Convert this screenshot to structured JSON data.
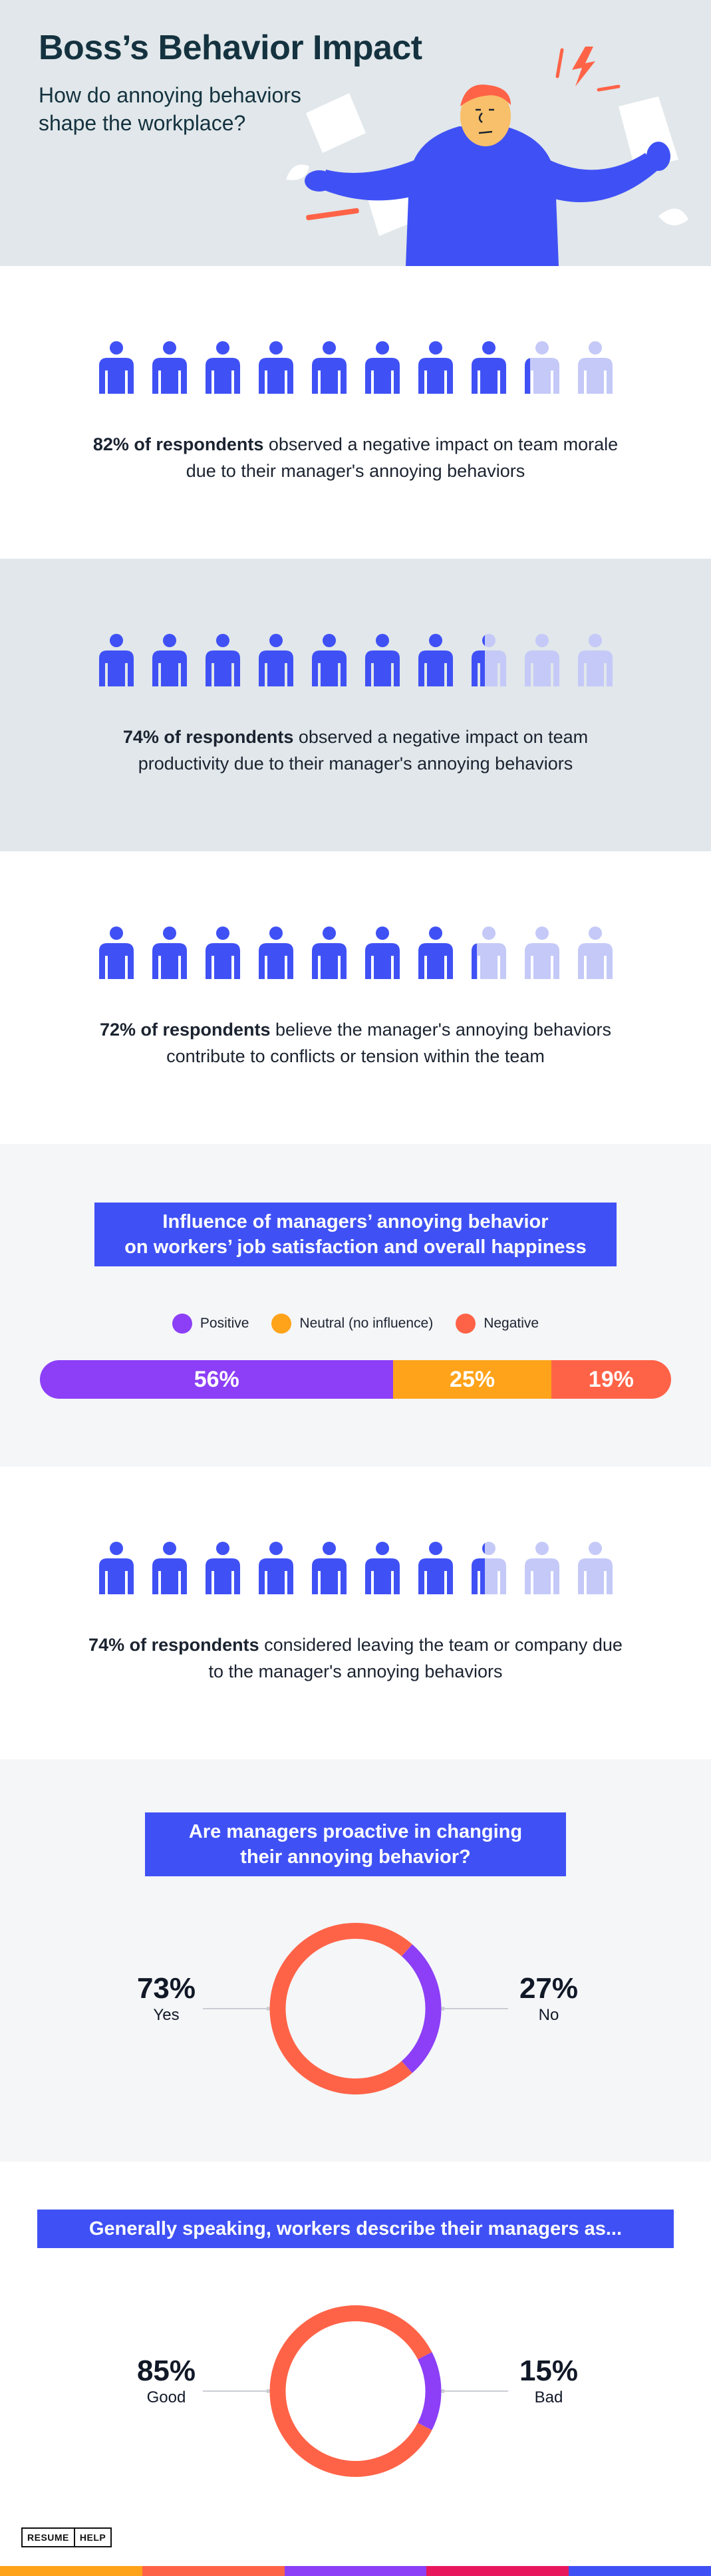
{
  "header": {
    "title": "Boss’s Behavior Impact",
    "subtitle": "How do annoying behaviors shape the workplace?"
  },
  "colors": {
    "accent_blue": "#3f51f5",
    "person_filled": "#3f51f5",
    "person_faded": "#c4c9f8",
    "positive": "#8c3ff6",
    "neutral": "#ffa31a",
    "negative": "#ff6347",
    "grey_bg": "#e1e7ea",
    "light_bg": "#f4f6f8"
  },
  "stats": [
    {
      "percent": 82,
      "bold": "82% of respondents",
      "rest": " observed a negative impact on team morale due to their manager's annoying behaviors"
    },
    {
      "percent": 74,
      "bold": "74% of respondents",
      "rest": " observed a negative impact on team productivity due to their manager's annoying behaviors"
    },
    {
      "percent": 72,
      "bold": "72% of respondents",
      "rest": " believe the manager's annoying behaviors contribute to conflicts or tension within the team"
    },
    {
      "percent": 74,
      "bold": "74% of respondents",
      "rest": " considered leaving the team or company due to the manager's annoying behaviors"
    }
  ],
  "chart_data": [
    {
      "type": "bar",
      "orientation": "horizontal-stacked",
      "title": "Influence of managers’ annoying behavior on workers’ job satisfaction and overall happiness",
      "title_line1": "Influence of managers’ annoying behavior",
      "title_line2": "on workers’ job satisfaction and overall happiness",
      "categories": [
        "Positive",
        "Neutral (no influence)",
        "Negative"
      ],
      "values": [
        56,
        25,
        19
      ],
      "labels": [
        "56%",
        "25%",
        "19%"
      ],
      "legend": "top-center"
    },
    {
      "type": "pie",
      "style": "donut",
      "title": "Are managers proactive in changing their annoying behavior?",
      "title_line1": "Are managers proactive in changing",
      "title_line2": "their annoying behavior?",
      "categories": [
        "Yes",
        "No"
      ],
      "values": [
        73,
        27
      ],
      "labels": [
        "73%",
        "27%"
      ]
    },
    {
      "type": "pie",
      "style": "donut",
      "title": "Generally speaking, workers describe their managers as...",
      "categories": [
        "Good",
        "Bad"
      ],
      "values": [
        85,
        15
      ],
      "labels": [
        "85%",
        "15%"
      ]
    }
  ],
  "footer": {
    "logo_left": "RESUME",
    "logo_right": "HELP",
    "stripe_colors": [
      "#ffa31a",
      "#ff6347",
      "#8c3ff6",
      "#e8175d",
      "#3f51f5"
    ]
  }
}
